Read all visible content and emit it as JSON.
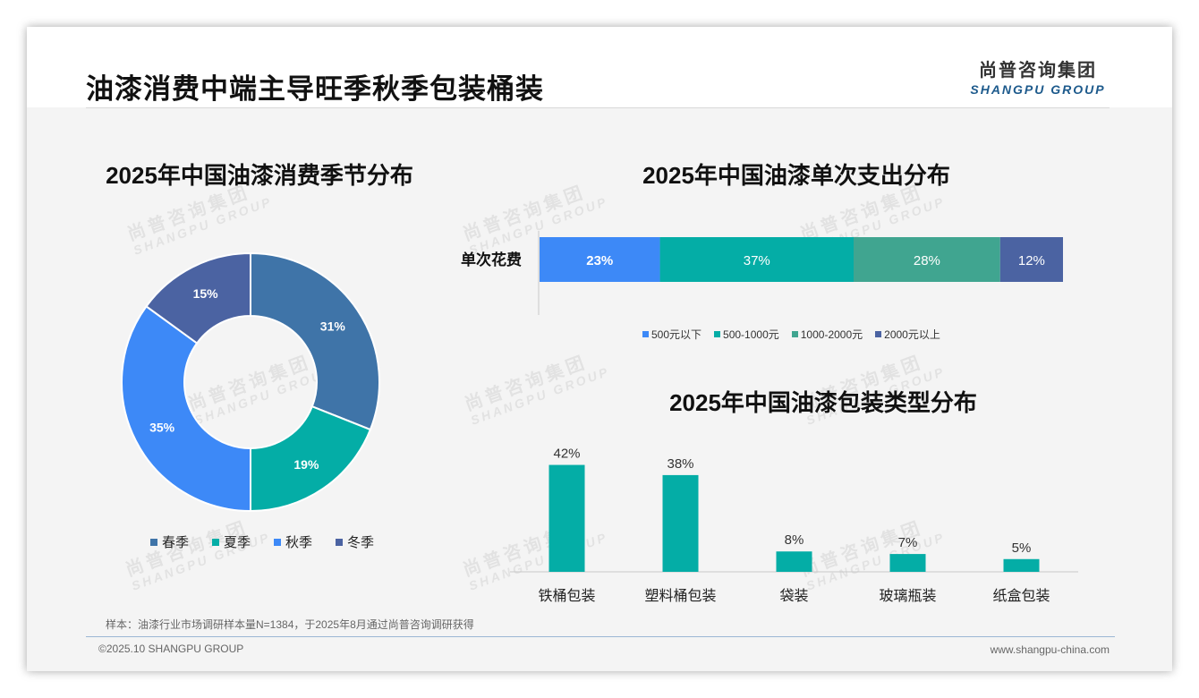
{
  "page": {
    "title": "油漆消费中端主导旺季秋季包装桶装",
    "sample_note": "样本：油漆行业市场调研样本量N=1384，于2025年8月通过尚普咨询调研获得",
    "footer_left": "©2025.10 SHANGPU GROUP",
    "footer_right": "www.shangpu-china.com"
  },
  "logo": {
    "cn": "尚普咨询集团",
    "en": "SHANGPU GROUP"
  },
  "watermark": {
    "cn": "尚普咨询集团",
    "en": "SHANGPU GROUP"
  },
  "chart_data": [
    {
      "type": "pie",
      "variant": "donut",
      "title": "2025年中国油漆消费季节分布",
      "categories": [
        "春季",
        "夏季",
        "秋季",
        "冬季"
      ],
      "values": [
        31,
        19,
        35,
        15
      ],
      "value_labels": [
        "31%",
        "19%",
        "35%",
        "15%"
      ],
      "colors": [
        "#3f74a8",
        "#04ada6",
        "#3d89f7",
        "#4b63a2"
      ],
      "legend": "bottom"
    },
    {
      "type": "bar",
      "orientation": "horizontal",
      "stacked": true,
      "title": "2025年中国油漆单次支出分布",
      "categories": [
        "单次花费"
      ],
      "series": [
        {
          "name": "500元以下",
          "values": [
            23
          ],
          "label": "23%",
          "color": "#3d89f7"
        },
        {
          "name": "500-1000元",
          "values": [
            37
          ],
          "label": "37%",
          "color": "#04ada6"
        },
        {
          "name": "1000-2000元",
          "values": [
            28
          ],
          "label": "28%",
          "color": "#40a590"
        },
        {
          "name": "2000元以上",
          "values": [
            12
          ],
          "label": "12%",
          "color": "#4b63a2"
        }
      ],
      "xlim": [
        0,
        100
      ],
      "legend": "bottom"
    },
    {
      "type": "bar",
      "title": "2025年中国油漆包装类型分布",
      "categories": [
        "铁桶包装",
        "塑料桶包装",
        "袋装",
        "玻璃瓶装",
        "纸盒包装"
      ],
      "values": [
        42,
        38,
        8,
        7,
        5
      ],
      "value_labels": [
        "42%",
        "38%",
        "8%",
        "7%",
        "5%"
      ],
      "color": "#04ada6",
      "ylim": [
        0,
        45
      ]
    }
  ]
}
